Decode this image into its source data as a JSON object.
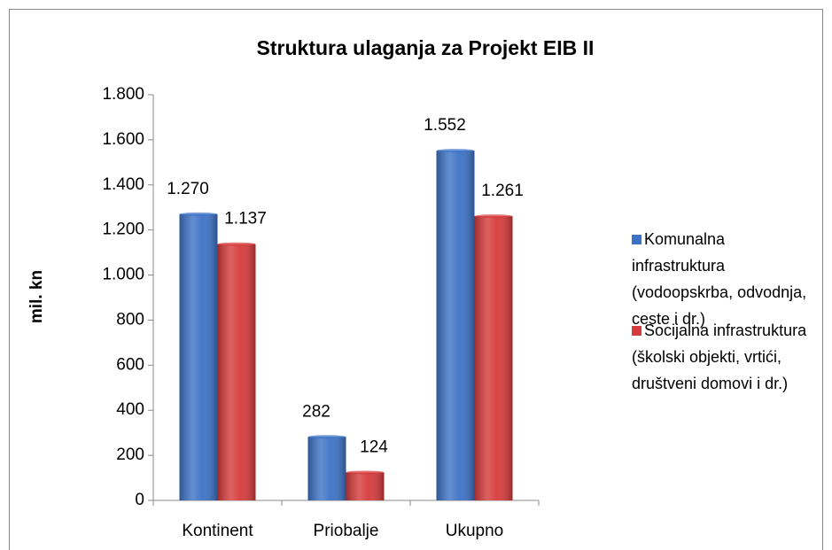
{
  "chart_data": {
    "type": "bar",
    "title": "Struktura ulaganja za Projekt EIB II",
    "y_label": "mil. kn",
    "categories": [
      "Kontinent",
      "Priobalje",
      "Ukupno"
    ],
    "series": [
      {
        "name": "Komunalna infrastruktura (vodoopskrba, odvodnja, ceste i dr.)",
        "color": "#3c72c6",
        "values": [
          1270,
          282,
          1552
        ],
        "value_labels": [
          "1.270",
          "282",
          "1.552"
        ]
      },
      {
        "name": "Socijalna infrastruktura (školski objekti, vrtići, društveni domovi i dr.)",
        "color": "#d63a3a",
        "values": [
          1137,
          124,
          1261
        ],
        "value_labels": [
          "1.137",
          "124",
          "1.261"
        ]
      }
    ],
    "ylim": [
      0,
      1800
    ],
    "yticks": [
      0,
      200,
      400,
      600,
      800,
      {
        "value": 1000,
        "label": "1.000"
      },
      {
        "value": 1200,
        "label": "1.200"
      },
      {
        "value": 1400,
        "label": "1.400"
      },
      {
        "value": 1600,
        "label": "1.600"
      },
      {
        "value": 1800,
        "label": "1.800"
      }
    ],
    "grid": false,
    "legend": "right"
  }
}
